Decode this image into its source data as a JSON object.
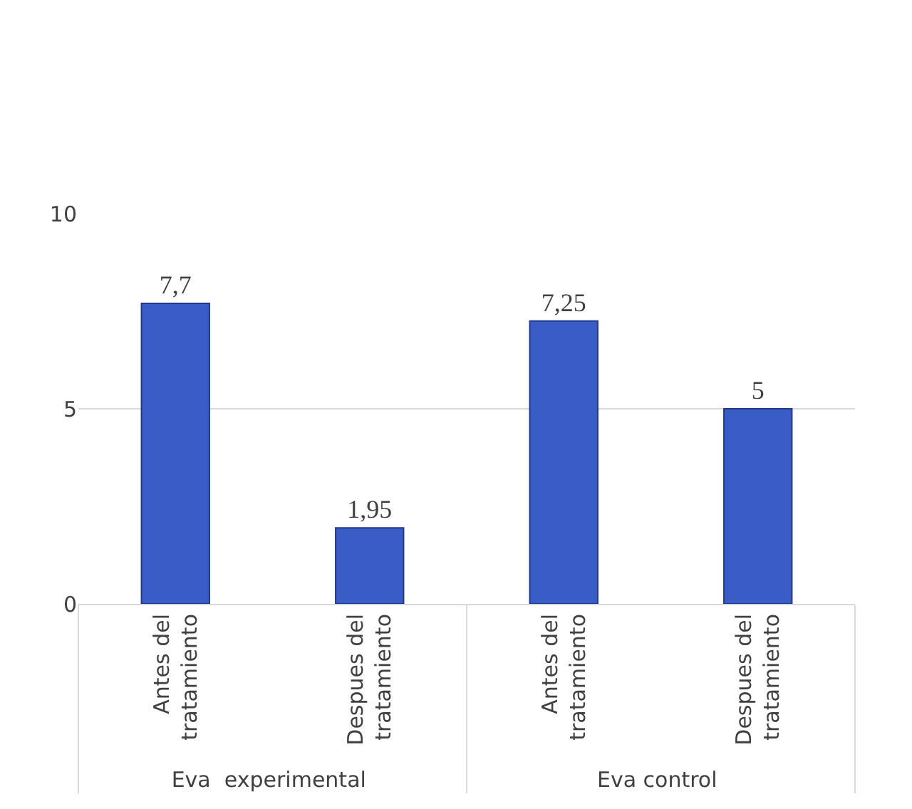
{
  "chart_data": {
    "type": "bar",
    "categories": [
      "Antes del tratamiento",
      "Despues del tratamiento",
      "Antes del tratamiento",
      "Despues del tratamiento"
    ],
    "values": [
      7.7,
      1.95,
      7.25,
      5
    ],
    "value_labels": [
      "7,7",
      "1,95",
      "7,25",
      "5"
    ],
    "color": "#3a5cc6",
    "ylim": [
      0,
      10
    ],
    "yticks": [
      0,
      5,
      10
    ],
    "grid": "y",
    "legend": false,
    "annotations": [
      "Eva  experimental",
      "Eva control"
    ]
  }
}
